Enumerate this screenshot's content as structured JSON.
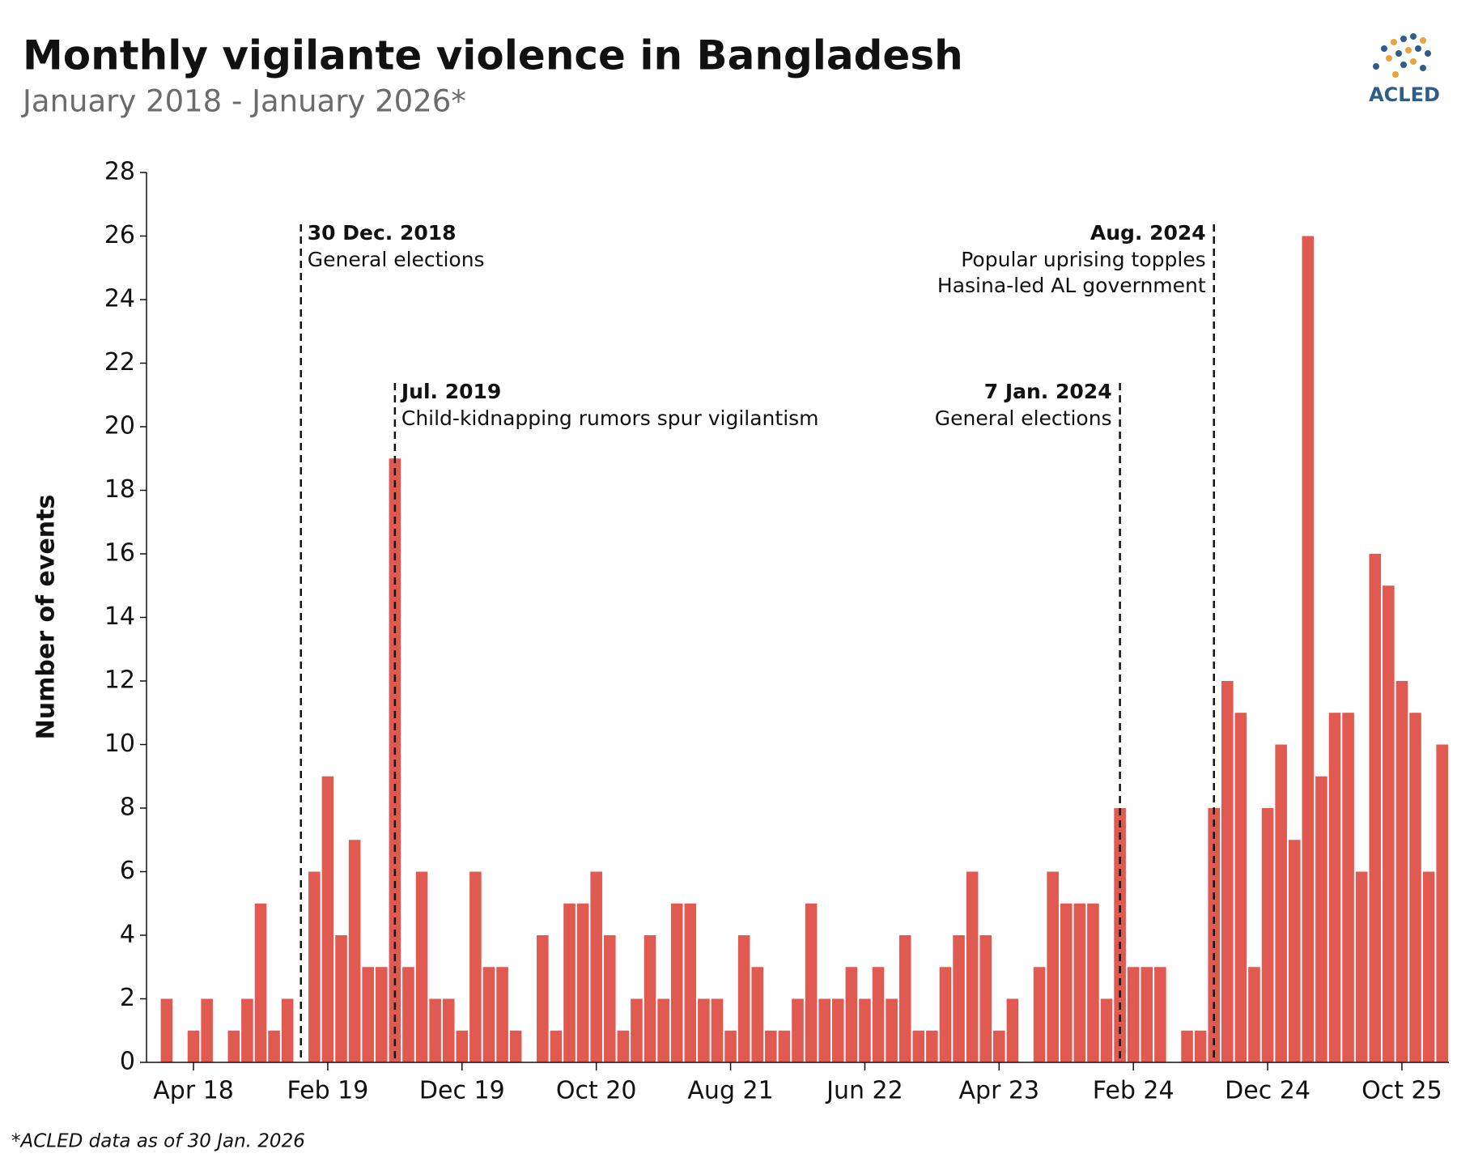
{
  "chart_data": {
    "type": "bar",
    "title": "Monthly vigilante violence in Bangladesh",
    "subtitle": "January 2018 - January 2026*",
    "y_label": "Number of events",
    "footnote": "*ACLED data as of 30 Jan. 2026",
    "logo_text": "ACLED",
    "color": "#e05a52",
    "categories": [
      null,
      null,
      null,
      "Apr 18",
      null,
      null,
      null,
      null,
      null,
      null,
      null,
      null,
      null,
      "Feb 19",
      null,
      null,
      null,
      null,
      null,
      null,
      null,
      null,
      null,
      "Dec 19",
      null,
      null,
      null,
      null,
      null,
      null,
      null,
      null,
      null,
      "Oct 20",
      null,
      null,
      null,
      null,
      null,
      null,
      null,
      null,
      null,
      "Aug 21",
      null,
      null,
      null,
      null,
      null,
      null,
      null,
      null,
      null,
      "Jun 22",
      null,
      null,
      null,
      null,
      null,
      null,
      null,
      null,
      null,
      "Apr 23",
      null,
      null,
      null,
      null,
      null,
      null,
      null,
      null,
      null,
      "Feb 24",
      null,
      null,
      null,
      null,
      null,
      null,
      null,
      null,
      null,
      "Dec 24",
      null,
      null,
      null,
      null,
      null,
      null,
      null,
      null,
      null,
      "Oct 25",
      null,
      null,
      null
    ],
    "values": [
      0,
      2,
      0,
      1,
      2,
      0,
      1,
      2,
      5,
      1,
      2,
      0,
      6,
      9,
      4,
      7,
      3,
      3,
      19,
      3,
      6,
      2,
      2,
      1,
      6,
      3,
      3,
      1,
      0,
      4,
      1,
      5,
      5,
      6,
      4,
      1,
      2,
      4,
      2,
      5,
      5,
      2,
      2,
      1,
      4,
      3,
      1,
      1,
      2,
      5,
      2,
      2,
      3,
      2,
      3,
      2,
      4,
      1,
      1,
      3,
      4,
      6,
      4,
      1,
      2,
      0,
      3,
      6,
      5,
      5,
      5,
      2,
      8,
      3,
      3,
      3,
      0,
      1,
      1,
      8,
      12,
      11,
      3,
      8,
      10,
      7,
      26,
      9,
      11,
      11,
      6,
      16,
      15,
      12,
      11,
      6,
      10
    ],
    "ylim": [
      0,
      28
    ],
    "yticks": [
      0,
      2,
      4,
      6,
      8,
      10,
      12,
      14,
      16,
      18,
      20,
      22,
      24,
      26,
      28
    ],
    "annotations": [
      {
        "month_index": 11,
        "date": "30 Dec. 2018",
        "text": [
          "General elections"
        ]
      },
      {
        "month_index": 18,
        "date": "Jul. 2019",
        "text": [
          "Child-kidnapping rumors spur vigilantism"
        ]
      },
      {
        "month_index": 72,
        "date": "7 Jan. 2024",
        "text": [
          "General elections"
        ]
      },
      {
        "month_index": 79,
        "date": "Aug. 2024",
        "text": [
          "Popular uprising topples",
          "Hasina-led AL government"
        ]
      }
    ]
  }
}
